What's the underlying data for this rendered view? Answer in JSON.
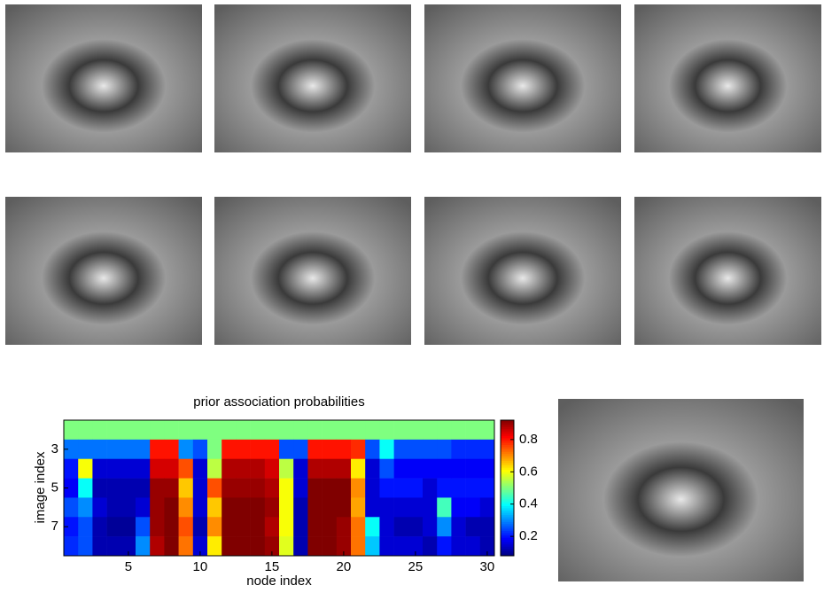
{
  "chart_data": {
    "type": "heatmap",
    "title": "prior association probabilities",
    "xlabel": "node index",
    "ylabel": "image index",
    "colormap": "jet",
    "x": [
      1,
      2,
      3,
      4,
      5,
      6,
      7,
      8,
      9,
      10,
      11,
      12,
      13,
      14,
      15,
      16,
      17,
      18,
      19,
      20,
      21,
      22,
      23,
      24,
      25,
      26,
      27,
      28,
      29,
      30
    ],
    "y": [
      2,
      3,
      4,
      5,
      6,
      7,
      8
    ],
    "values": [
      [
        0.5,
        0.5,
        0.5,
        0.5,
        0.5,
        0.5,
        0.5,
        0.5,
        0.5,
        0.5,
        0.5,
        0.5,
        0.5,
        0.5,
        0.5,
        0.5,
        0.5,
        0.5,
        0.5,
        0.5,
        0.5,
        0.5,
        0.5,
        0.5,
        0.5,
        0.5,
        0.5,
        0.5,
        0.5,
        0.5
      ],
      [
        0.28,
        0.28,
        0.28,
        0.28,
        0.28,
        0.28,
        0.8,
        0.8,
        0.3,
        0.25,
        0.5,
        0.8,
        0.8,
        0.8,
        0.8,
        0.25,
        0.25,
        0.8,
        0.8,
        0.8,
        0.78,
        0.25,
        0.4,
        0.25,
        0.25,
        0.25,
        0.25,
        0.22,
        0.22,
        0.22
      ],
      [
        0.2,
        0.6,
        0.15,
        0.15,
        0.15,
        0.15,
        0.85,
        0.85,
        0.75,
        0.15,
        0.55,
        0.88,
        0.88,
        0.88,
        0.85,
        0.55,
        0.15,
        0.88,
        0.88,
        0.88,
        0.62,
        0.15,
        0.25,
        0.18,
        0.18,
        0.18,
        0.18,
        0.18,
        0.18,
        0.18
      ],
      [
        0.18,
        0.4,
        0.12,
        0.12,
        0.12,
        0.12,
        0.9,
        0.9,
        0.65,
        0.15,
        0.75,
        0.9,
        0.9,
        0.9,
        0.88,
        0.6,
        0.15,
        0.92,
        0.92,
        0.92,
        0.7,
        0.15,
        0.2,
        0.2,
        0.2,
        0.15,
        0.2,
        0.2,
        0.2,
        0.2
      ],
      [
        0.25,
        0.3,
        0.15,
        0.12,
        0.12,
        0.15,
        0.9,
        0.92,
        0.7,
        0.15,
        0.65,
        0.92,
        0.92,
        0.92,
        0.9,
        0.6,
        0.12,
        0.92,
        0.92,
        0.92,
        0.68,
        0.15,
        0.15,
        0.15,
        0.15,
        0.15,
        0.45,
        0.18,
        0.18,
        0.15
      ],
      [
        0.2,
        0.25,
        0.12,
        0.1,
        0.1,
        0.25,
        0.9,
        0.92,
        0.75,
        0.12,
        0.7,
        0.92,
        0.92,
        0.92,
        0.88,
        0.6,
        0.12,
        0.92,
        0.92,
        0.9,
        0.72,
        0.4,
        0.15,
        0.12,
        0.12,
        0.15,
        0.3,
        0.15,
        0.12,
        0.12
      ],
      [
        0.22,
        0.25,
        0.12,
        0.12,
        0.12,
        0.3,
        0.88,
        0.92,
        0.72,
        0.15,
        0.62,
        0.92,
        0.92,
        0.92,
        0.9,
        0.58,
        0.12,
        0.92,
        0.92,
        0.9,
        0.72,
        0.35,
        0.15,
        0.15,
        0.15,
        0.12,
        0.2,
        0.15,
        0.15,
        0.12
      ]
    ],
    "xlim": [
      0.5,
      30.5
    ],
    "xticks": [
      5,
      10,
      15,
      20,
      25,
      30
    ],
    "ylim": [
      8.5,
      1.5
    ],
    "yticks": [
      3,
      5,
      7
    ],
    "clim": [
      0.08,
      0.92
    ],
    "cticks": [
      0.2,
      0.4,
      0.6,
      0.8
    ]
  }
}
